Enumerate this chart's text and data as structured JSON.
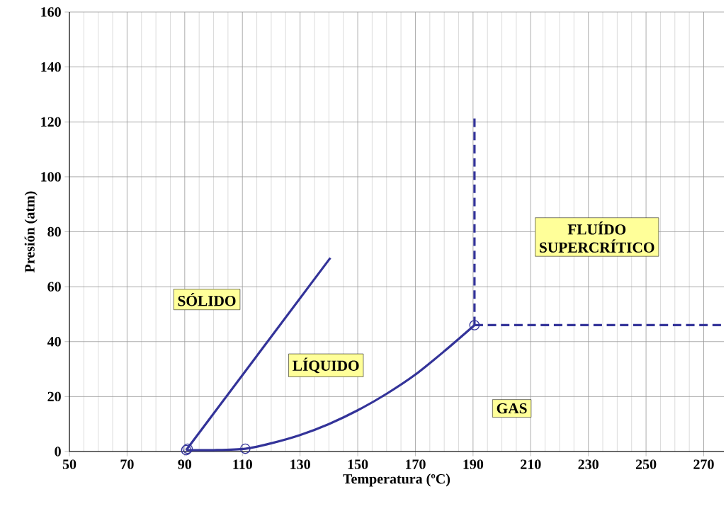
{
  "chart_data": {
    "type": "line",
    "xlabel": "Temperatura (ºC)",
    "ylabel": "Presión (atm)",
    "xlim": [
      50,
      277
    ],
    "xticks": [
      50,
      70,
      90,
      110,
      130,
      150,
      170,
      190,
      210,
      230,
      250,
      270
    ],
    "ylim": [
      0,
      160
    ],
    "yticks": [
      0,
      20,
      40,
      60,
      80,
      100,
      120,
      140,
      160
    ],
    "grid": true,
    "series": [
      {
        "color": "#333399",
        "x": [
          90.5,
          140.5
        ],
        "values": [
          0.5,
          70.5
        ]
      },
      {
        "color": "#333399",
        "x": [
          90.5,
          100,
          111,
          120,
          130,
          140,
          150,
          160,
          170,
          180,
          190.5
        ],
        "values": [
          0.5,
          0.5,
          1,
          3,
          6,
          10,
          15,
          21,
          28,
          36.5,
          46
        ]
      },
      {
        "color": "#333399",
        "x": [
          190.5,
          190.5
        ],
        "values": [
          46,
          122
        ],
        "line_style": "dashed"
      },
      {
        "color": "#333399",
        "x": [
          190.5,
          277
        ],
        "values": [
          46,
          46
        ],
        "line_style": "dashed"
      },
      {
        "type": "scatter",
        "color": "#333399",
        "marker": "circle",
        "x": [
          90.5,
          91,
          111,
          190.5
        ],
        "values": [
          0.5,
          1,
          1,
          46
        ]
      }
    ],
    "annotations": [
      "SÓLIDO",
      "LÍQUIDO",
      "GAS",
      "FLUÍDO SUPERCRÍTICO"
    ]
  }
}
